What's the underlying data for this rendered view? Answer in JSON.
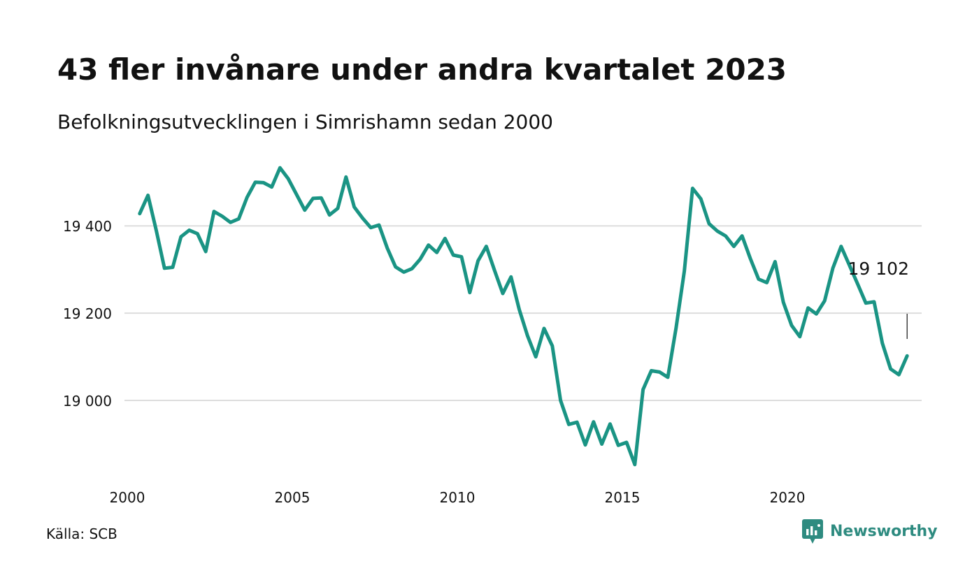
{
  "header": {
    "title": "43 fler invånare under andra kvartalet 2023",
    "subtitle": "Befolkningsutvecklingen i Simrishamn sedan 2000"
  },
  "footer": {
    "source": "Källa: SCB",
    "brand": "Newsworthy"
  },
  "colors": {
    "line": "#1a9484",
    "grid": "#dddddd",
    "text": "#111111",
    "brand": "#2e8b80"
  },
  "chart_data": {
    "type": "line",
    "title": "43 fler invånare under andra kvartalet 2023",
    "subtitle": "Befolkningsutvecklingen i Simrishamn sedan 2000",
    "xlabel": "",
    "ylabel": "",
    "grid": "horizontal",
    "legend": "none",
    "xlim": [
      2000,
      2023.5
    ],
    "ylim": [
      18850,
      19550
    ],
    "xticks": [
      2000,
      2005,
      2010,
      2015,
      2020
    ],
    "xtick_labels": [
      "2000",
      "2005",
      "2010",
      "2015",
      "2020"
    ],
    "yticks": [
      19000,
      19200,
      19400
    ],
    "ytick_labels": [
      "19 000",
      "19 200",
      "19 400"
    ],
    "annotation": {
      "x": 2023.5,
      "y": 19102,
      "text": "19 102"
    },
    "x": [
      2000.25,
      2000.5,
      2000.75,
      2001.0,
      2001.25,
      2001.5,
      2001.75,
      2002.0,
      2002.25,
      2002.5,
      2002.75,
      2003.0,
      2003.25,
      2003.5,
      2003.75,
      2004.0,
      2004.25,
      2004.5,
      2004.75,
      2005.0,
      2005.25,
      2005.5,
      2005.75,
      2006.0,
      2006.25,
      2006.5,
      2006.75,
      2007.0,
      2007.25,
      2007.5,
      2007.75,
      2008.0,
      2008.25,
      2008.5,
      2008.75,
      2009.0,
      2009.25,
      2009.5,
      2009.75,
      2010.0,
      2010.25,
      2010.5,
      2010.75,
      2011.0,
      2011.25,
      2011.5,
      2011.75,
      2012.0,
      2012.25,
      2012.5,
      2012.75,
      2013.0,
      2013.25,
      2013.5,
      2013.75,
      2014.0,
      2014.25,
      2014.5,
      2014.75,
      2015.0,
      2015.25,
      2015.5,
      2015.75,
      2016.0,
      2016.25,
      2016.5,
      2016.75,
      2017.0,
      2017.25,
      2017.5,
      2017.75,
      2018.0,
      2018.25,
      2018.5,
      2018.75,
      2019.0,
      2019.25,
      2019.5,
      2019.75,
      2020.0,
      2020.25,
      2020.5,
      2020.75,
      2021.0,
      2021.25,
      2021.5,
      2021.75,
      2022.0,
      2022.25,
      2022.5,
      2022.75,
      2023.0,
      2023.25,
      2023.5
    ],
    "series": [
      {
        "values": [
          19428,
          19470,
          19390,
          19303,
          19305,
          19375,
          19390,
          19382,
          19341,
          19433,
          19422,
          19408,
          19416,
          19465,
          19500,
          19499,
          19489,
          19533,
          19508,
          19472,
          19436,
          19463,
          19464,
          19425,
          19440,
          19512,
          19443,
          19418,
          19396,
          19402,
          19349,
          19306,
          19294,
          19302,
          19324,
          19356,
          19339,
          19371,
          19333,
          19329,
          19247,
          19320,
          19353,
          19298,
          19245,
          19283,
          19208,
          19148,
          19100,
          19165,
          19125,
          19000,
          18945,
          18950,
          18898,
          18951,
          18900,
          18946,
          18897,
          18904,
          18853,
          19025,
          19068,
          19065,
          19053,
          19166,
          19296,
          19486,
          19462,
          19405,
          19388,
          19377,
          19353,
          19377,
          19325,
          19278,
          19270,
          19318,
          19225,
          19172,
          19146,
          19212,
          19198,
          19228,
          19303,
          19353,
          19310,
          19267,
          19223,
          19226,
          19131,
          19072,
          19059,
          19102
        ]
      }
    ]
  }
}
